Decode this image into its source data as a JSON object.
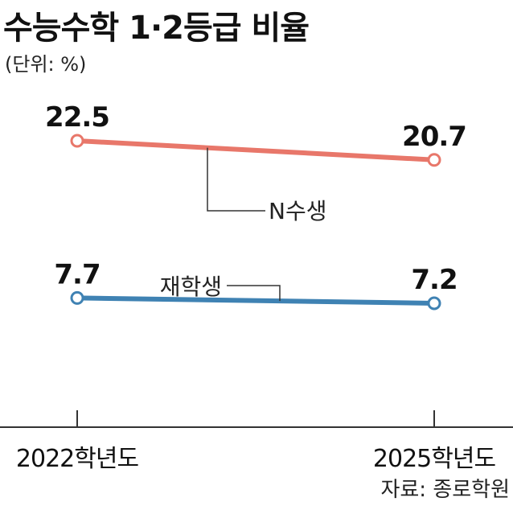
{
  "title": "수능수학 1·2등급 비율",
  "unit": "(단위: %)",
  "source": "자료: 종로학원",
  "colors": {
    "n_series": "#e8776a",
    "jae_series": "#3f82b3"
  },
  "chart_data": {
    "type": "line",
    "categories": [
      "2022학년도",
      "2025학년도"
    ],
    "series": [
      {
        "name": "N수생",
        "values": [
          22.5,
          20.7
        ],
        "labels": [
          "22.5",
          "20.7"
        ]
      },
      {
        "name": "재학생",
        "values": [
          7.7,
          7.2
        ],
        "labels": [
          "7.7",
          "7.2"
        ]
      }
    ],
    "ylabel": "",
    "grid": false
  }
}
